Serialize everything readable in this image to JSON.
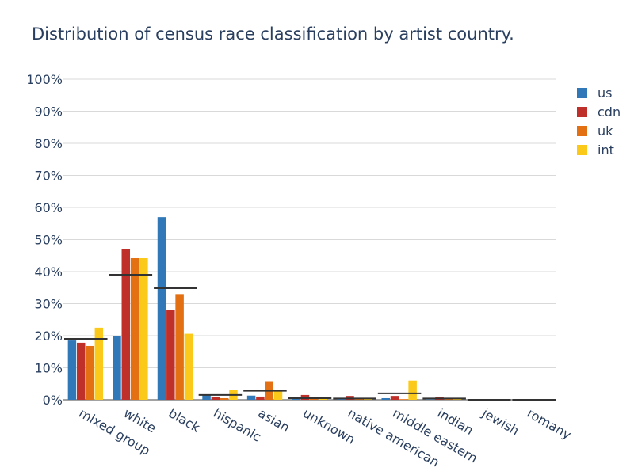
{
  "chart_data": {
    "type": "bar",
    "title": "Distribution of census race classification by artist country.",
    "xlabel": "",
    "ylabel": "",
    "ylim": [
      0,
      100
    ],
    "yticks": [
      "0%",
      "10%",
      "20%",
      "30%",
      "40%",
      "50%",
      "60%",
      "70%",
      "80%",
      "90%",
      "100%"
    ],
    "categories": [
      "mixed group",
      "white",
      "black",
      "hispanic",
      "asian",
      "unknown",
      "native american",
      "middle eastern",
      "indian",
      "jewish",
      "romany"
    ],
    "series": [
      {
        "name": "us",
        "color": "#3078b8",
        "values": [
          18.5,
          20.0,
          57.0,
          1.5,
          1.3,
          0.3,
          0.2,
          0.5,
          0.1,
          0.0,
          0.0
        ]
      },
      {
        "name": "cdn",
        "color": "#c0302a",
        "values": [
          17.8,
          47.0,
          28.0,
          0.8,
          1.0,
          1.5,
          1.2,
          1.2,
          0.8,
          0.0,
          0.0
        ]
      },
      {
        "name": "uk",
        "color": "#e37012",
        "values": [
          16.8,
          44.2,
          33.0,
          0.5,
          5.8,
          0.5,
          0.3,
          0.2,
          0.4,
          0.0,
          0.0
        ]
      },
      {
        "name": "int",
        "color": "#fbc91a",
        "values": [
          22.5,
          44.2,
          20.6,
          3.0,
          2.8,
          0.6,
          0.3,
          6.0,
          0.4,
          0.0,
          0.0
        ]
      }
    ],
    "averages": [
      19.0,
      39.0,
      34.8,
      1.5,
      2.8,
      0.5,
      0.4,
      2.0,
      0.4,
      0.0,
      0.0
    ],
    "legend_position": "top-right",
    "grid": true
  }
}
